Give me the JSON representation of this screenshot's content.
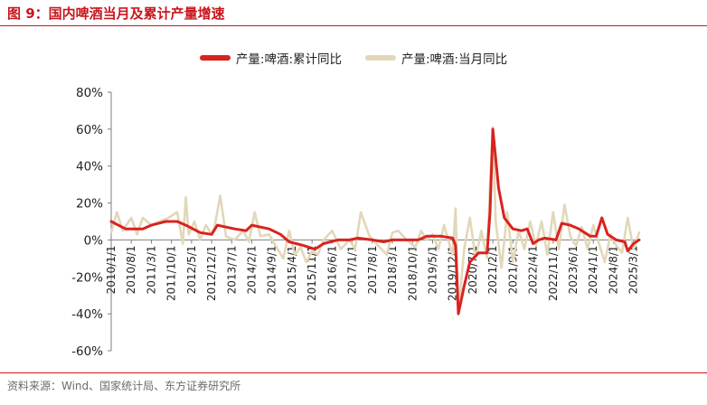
{
  "header": {
    "title": "图 9：国内啤酒当月及累计产量增速",
    "accent_color": "#c8161d"
  },
  "footer": {
    "source": "资料来源：Wind、国家统计局、东方证券研究所"
  },
  "chart_data": {
    "type": "line",
    "title": "",
    "xlabel": "",
    "ylabel": "",
    "ylim": [
      -60,
      80
    ],
    "yticks": [
      -60,
      -40,
      -20,
      0,
      20,
      40,
      60,
      80
    ],
    "ytick_labels": [
      "-60%",
      "-40%",
      "-20%",
      "0%",
      "20%",
      "40%",
      "60%",
      "80%"
    ],
    "grid": false,
    "legend_position": "top-center",
    "xtick_labels": [
      "2010/1/1",
      "2010/8/1",
      "2011/3/1",
      "2011/10/1",
      "2012/5/1",
      "2012/12/1",
      "2013/7/1",
      "2014/2/1",
      "2014/9/1",
      "2015/4/1",
      "2015/11/1",
      "2016/6/1",
      "2017/1/1",
      "2017/8/1",
      "2018/3/1",
      "2018/10/1",
      "2019/5/1",
      "2019/12/1",
      "2020/7/1",
      "2021/2/1",
      "2021/9/1",
      "2022/4/1",
      "2022/11/1",
      "2023/6/1",
      "2024/1/1",
      "2024/8/1",
      "2025/3/1"
    ],
    "series": [
      {
        "name": "产量:啤酒:累计同比",
        "color": "#d9231f",
        "points": [
          [
            "2010/1",
            10
          ],
          [
            "2010/6",
            6
          ],
          [
            "2010/12",
            6
          ],
          [
            "2011/3",
            8
          ],
          [
            "2011/8",
            10
          ],
          [
            "2011/12",
            10
          ],
          [
            "2012/3",
            8
          ],
          [
            "2012/8",
            4
          ],
          [
            "2012/12",
            3
          ],
          [
            "2013/2",
            8
          ],
          [
            "2013/8",
            6
          ],
          [
            "2013/12",
            5
          ],
          [
            "2014/2",
            8
          ],
          [
            "2014/8",
            6
          ],
          [
            "2014/12",
            3
          ],
          [
            "2015/3",
            -1
          ],
          [
            "2015/8",
            -3
          ],
          [
            "2015/12",
            -5
          ],
          [
            "2016/3",
            -2
          ],
          [
            "2016/8",
            0
          ],
          [
            "2016/12",
            0
          ],
          [
            "2017/3",
            1
          ],
          [
            "2017/8",
            0
          ],
          [
            "2017/12",
            -1
          ],
          [
            "2018/3",
            0
          ],
          [
            "2018/8",
            0
          ],
          [
            "2018/12",
            0
          ],
          [
            "2019/3",
            2
          ],
          [
            "2019/8",
            2
          ],
          [
            "2019/12",
            1
          ],
          [
            "2020/1",
            -3
          ],
          [
            "2020/2",
            -40
          ],
          [
            "2020/4",
            -25
          ],
          [
            "2020/6",
            -12
          ],
          [
            "2020/9",
            -7
          ],
          [
            "2020/12",
            -7
          ],
          [
            "2021/1",
            15
          ],
          [
            "2021/2",
            60
          ],
          [
            "2021/4",
            28
          ],
          [
            "2021/6",
            12
          ],
          [
            "2021/9",
            6
          ],
          [
            "2021/12",
            5
          ],
          [
            "2022/2",
            6
          ],
          [
            "2022/4",
            -2
          ],
          [
            "2022/6",
            0
          ],
          [
            "2022/8",
            1
          ],
          [
            "2022/12",
            0
          ],
          [
            "2023/2",
            9
          ],
          [
            "2023/5",
            8
          ],
          [
            "2023/8",
            6
          ],
          [
            "2023/12",
            2
          ],
          [
            "2024/2",
            2
          ],
          [
            "2024/4",
            12
          ],
          [
            "2024/6",
            3
          ],
          [
            "2024/9",
            0
          ],
          [
            "2024/12",
            -1
          ],
          [
            "2025/1",
            -6
          ],
          [
            "2025/3",
            -2
          ],
          [
            "2025/5",
            0
          ]
        ]
      },
      {
        "name": "产量:啤酒:当月同比",
        "color": "#e2d7b8",
        "points": [
          [
            "2010/1",
            4
          ],
          [
            "2010/3",
            15
          ],
          [
            "2010/5",
            5
          ],
          [
            "2010/8",
            12
          ],
          [
            "2010/10",
            3
          ],
          [
            "2010/12",
            12
          ],
          [
            "2011/3",
            8
          ],
          [
            "2011/6",
            10
          ],
          [
            "2011/9",
            12
          ],
          [
            "2011/12",
            15
          ],
          [
            "2012/2",
            -2
          ],
          [
            "2012/3",
            23
          ],
          [
            "2012/4",
            3
          ],
          [
            "2012/6",
            10
          ],
          [
            "2012/8",
            0
          ],
          [
            "2012/10",
            8
          ],
          [
            "2012/12",
            3
          ],
          [
            "2013/1",
            7
          ],
          [
            "2013/3",
            24
          ],
          [
            "2013/5",
            2
          ],
          [
            "2013/8",
            0
          ],
          [
            "2013/11",
            5
          ],
          [
            "2014/1",
            -1
          ],
          [
            "2014/3",
            15
          ],
          [
            "2014/5",
            2
          ],
          [
            "2014/8",
            3
          ],
          [
            "2014/11",
            -5
          ],
          [
            "2015/1",
            -10
          ],
          [
            "2015/3",
            5
          ],
          [
            "2015/5",
            -8
          ],
          [
            "2015/7",
            -4
          ],
          [
            "2015/9",
            -12
          ],
          [
            "2015/11",
            -6
          ],
          [
            "2016/1",
            -8
          ],
          [
            "2016/3",
            0
          ],
          [
            "2016/6",
            5
          ],
          [
            "2016/9",
            -5
          ],
          [
            "2016/12",
            0
          ],
          [
            "2017/2",
            -5
          ],
          [
            "2017/4",
            15
          ],
          [
            "2017/7",
            2
          ],
          [
            "2017/10",
            -3
          ],
          [
            "2018/1",
            -8
          ],
          [
            "2018/3",
            4
          ],
          [
            "2018/5",
            5
          ],
          [
            "2018/8",
            0
          ],
          [
            "2018/11",
            -4
          ],
          [
            "2019/1",
            5
          ],
          [
            "2019/3",
            0
          ],
          [
            "2019/5",
            3
          ],
          [
            "2019/7",
            -5
          ],
          [
            "2019/9",
            8
          ],
          [
            "2019/11",
            -3
          ],
          [
            "2019/12",
            -8
          ],
          [
            "2020/1",
            17
          ],
          [
            "2020/2",
            -40
          ],
          [
            "2020/4",
            -5
          ],
          [
            "2020/6",
            12
          ],
          [
            "2020/8",
            -10
          ],
          [
            "2020/10",
            5
          ],
          [
            "2020/12",
            -10
          ],
          [
            "2021/1",
            30
          ],
          [
            "2021/2",
            61
          ],
          [
            "2021/3",
            10
          ],
          [
            "2021/5",
            -15
          ],
          [
            "2021/7",
            15
          ],
          [
            "2021/9",
            -12
          ],
          [
            "2021/11",
            5
          ],
          [
            "2022/1",
            -5
          ],
          [
            "2022/3",
            10
          ],
          [
            "2022/5",
            -3
          ],
          [
            "2022/7",
            10
          ],
          [
            "2022/9",
            -8
          ],
          [
            "2022/11",
            15
          ],
          [
            "2023/1",
            -5
          ],
          [
            "2023/3",
            19
          ],
          [
            "2023/5",
            2
          ],
          [
            "2023/7",
            -3
          ],
          [
            "2023/9",
            7
          ],
          [
            "2023/11",
            -5
          ],
          [
            "2024/1",
            8
          ],
          [
            "2024/3",
            -2
          ],
          [
            "2024/5",
            -12
          ],
          [
            "2024/7",
            3
          ],
          [
            "2024/9",
            -3
          ],
          [
            "2024/11",
            -7
          ],
          [
            "2025/1",
            12
          ],
          [
            "2025/3",
            -5
          ],
          [
            "2025/5",
            4
          ]
        ]
      }
    ]
  }
}
